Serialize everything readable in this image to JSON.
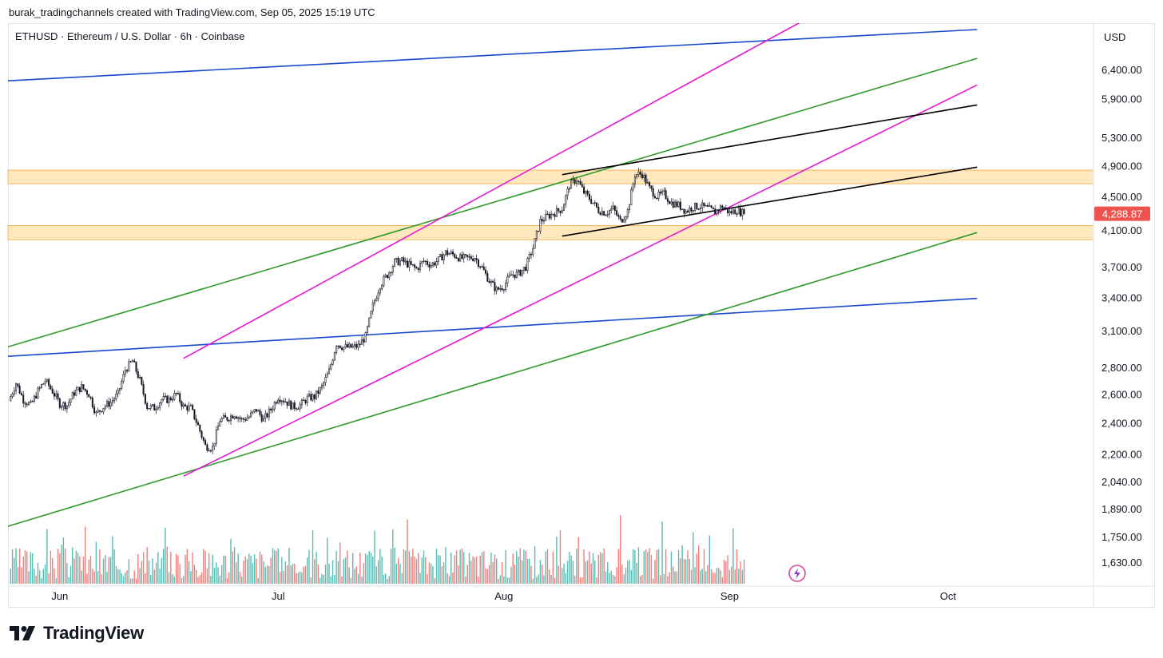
{
  "header": {
    "attribution": "burak_tradingchannels created with TradingView.com, Sep 05, 2025 15:19 UTC"
  },
  "chart_title": "ETHUSD · Ethereum / U.S. Dollar · 6h · Coinbase",
  "currency_label": "USD",
  "current_price_label": "4,288.87",
  "logo_text": "TradingView",
  "colors": {
    "up": "#26a69a",
    "down": "#ef5350",
    "current_price": "#ef5350",
    "zone": "#ffe0a8",
    "zone_border": "#f2a93b",
    "blue_line": "#1848cc",
    "green_line": "#2d9a27",
    "magenta_line": "#e617d4",
    "black_line": "#000000"
  },
  "chart_data": {
    "type": "candlestick",
    "symbol": "ETHUSD",
    "interval": "6h",
    "exchange": "Coinbase",
    "x_ticks": [
      "Jun",
      "Jul",
      "Aug",
      "Sep",
      "Oct"
    ],
    "y_ticks": [
      "6,400.00",
      "5,900.00",
      "5,300.00",
      "4,900.00",
      "4,500.00",
      "4,100.00",
      "3,700.00",
      "3,400.00",
      "3,100.00",
      "2,800.00",
      "2,600.00",
      "2,400.00",
      "2,200.00",
      "2,040.00",
      "1,890.00",
      "1,750.00",
      "1,630.00"
    ],
    "y_tick_values": [
      6400,
      5900,
      5300,
      4900,
      4500,
      4100,
      3700,
      3400,
      3100,
      2800,
      2600,
      2400,
      2200,
      2040,
      1890,
      1750,
      1630
    ],
    "y_scale": "log",
    "start_date": "2025-05-25",
    "candles_per_day": 4,
    "close_path": [
      {
        "day": 0,
        "price": 2550
      },
      {
        "day": 1,
        "price": 2680
      },
      {
        "day": 2,
        "price": 2560
      },
      {
        "day": 3,
        "price": 2520
      },
      {
        "day": 4,
        "price": 2620
      },
      {
        "day": 5,
        "price": 2700
      },
      {
        "day": 6,
        "price": 2620
      },
      {
        "day": 7,
        "price": 2530
      },
      {
        "day": 8,
        "price": 2520
      },
      {
        "day": 9,
        "price": 2610
      },
      {
        "day": 10,
        "price": 2650
      },
      {
        "day": 11,
        "price": 2600
      },
      {
        "day": 12,
        "price": 2460
      },
      {
        "day": 13,
        "price": 2510
      },
      {
        "day": 14,
        "price": 2540
      },
      {
        "day": 15,
        "price": 2600
      },
      {
        "day": 16,
        "price": 2780
      },
      {
        "day": 17,
        "price": 2850
      },
      {
        "day": 18,
        "price": 2700
      },
      {
        "day": 19,
        "price": 2510
      },
      {
        "day": 20,
        "price": 2500
      },
      {
        "day": 21,
        "price": 2560
      },
      {
        "day": 22,
        "price": 2560
      },
      {
        "day": 23,
        "price": 2600
      },
      {
        "day": 24,
        "price": 2510
      },
      {
        "day": 25,
        "price": 2500
      },
      {
        "day": 26,
        "price": 2380
      },
      {
        "day": 27,
        "price": 2250
      },
      {
        "day": 28,
        "price": 2240
      },
      {
        "day": 29,
        "price": 2420
      },
      {
        "day": 30,
        "price": 2430
      },
      {
        "day": 31,
        "price": 2460
      },
      {
        "day": 32,
        "price": 2420
      },
      {
        "day": 33,
        "price": 2440
      },
      {
        "day": 34,
        "price": 2490
      },
      {
        "day": 35,
        "price": 2420
      },
      {
        "day": 36,
        "price": 2490
      },
      {
        "day": 37,
        "price": 2580
      },
      {
        "day": 38,
        "price": 2550
      },
      {
        "day": 39,
        "price": 2510
      },
      {
        "day": 40,
        "price": 2520
      },
      {
        "day": 41,
        "price": 2570
      },
      {
        "day": 42,
        "price": 2580
      },
      {
        "day": 43,
        "price": 2650
      },
      {
        "day": 44,
        "price": 2770
      },
      {
        "day": 45,
        "price": 2990
      },
      {
        "day": 46,
        "price": 2960
      },
      {
        "day": 47,
        "price": 2960
      },
      {
        "day": 48,
        "price": 2970
      },
      {
        "day": 49,
        "price": 3050
      },
      {
        "day": 50,
        "price": 3320
      },
      {
        "day": 51,
        "price": 3520
      },
      {
        "day": 52,
        "price": 3620
      },
      {
        "day": 53,
        "price": 3750
      },
      {
        "day": 54,
        "price": 3760
      },
      {
        "day": 55,
        "price": 3720
      },
      {
        "day": 56,
        "price": 3680
      },
      {
        "day": 57,
        "price": 3760
      },
      {
        "day": 58,
        "price": 3720
      },
      {
        "day": 59,
        "price": 3770
      },
      {
        "day": 60,
        "price": 3850
      },
      {
        "day": 61,
        "price": 3830
      },
      {
        "day": 62,
        "price": 3790
      },
      {
        "day": 63,
        "price": 3790
      },
      {
        "day": 64,
        "price": 3800
      },
      {
        "day": 65,
        "price": 3690
      },
      {
        "day": 66,
        "price": 3560
      },
      {
        "day": 67,
        "price": 3470
      },
      {
        "day": 68,
        "price": 3510
      },
      {
        "day": 69,
        "price": 3620
      },
      {
        "day": 70,
        "price": 3630
      },
      {
        "day": 71,
        "price": 3700
      },
      {
        "day": 72,
        "price": 3900
      },
      {
        "day": 73,
        "price": 4200
      },
      {
        "day": 74,
        "price": 4260
      },
      {
        "day": 75,
        "price": 4300
      },
      {
        "day": 76,
        "price": 4350
      },
      {
        "day": 77,
        "price": 4640
      },
      {
        "day": 78,
        "price": 4720
      },
      {
        "day": 79,
        "price": 4550
      },
      {
        "day": 80,
        "price": 4450
      },
      {
        "day": 81,
        "price": 4330
      },
      {
        "day": 82,
        "price": 4300
      },
      {
        "day": 83,
        "price": 4350
      },
      {
        "day": 84,
        "price": 4200
      },
      {
        "day": 85,
        "price": 4320
      },
      {
        "day": 86,
        "price": 4780
      },
      {
        "day": 87,
        "price": 4790
      },
      {
        "day": 88,
        "price": 4600
      },
      {
        "day": 89,
        "price": 4500
      },
      {
        "day": 90,
        "price": 4530
      },
      {
        "day": 91,
        "price": 4420
      },
      {
        "day": 92,
        "price": 4390
      },
      {
        "day": 93,
        "price": 4320
      },
      {
        "day": 94,
        "price": 4370
      },
      {
        "day": 95,
        "price": 4380
      },
      {
        "day": 96,
        "price": 4350
      },
      {
        "day": 97,
        "price": 4310
      },
      {
        "day": 98,
        "price": 4380
      },
      {
        "day": 99,
        "price": 4300
      },
      {
        "day": 100,
        "price": 4330
      },
      {
        "day": 101,
        "price": 4288.87
      }
    ],
    "current_price": 4288.87,
    "zones": [
      {
        "low": 4660,
        "high": 4840
      },
      {
        "low": 3990,
        "high": 4150
      }
    ],
    "trendlines": [
      {
        "color": "blue",
        "from": {
          "day": -2,
          "price": 6190
        },
        "to": {
          "day": 133,
          "price": 7150
        }
      },
      {
        "color": "blue",
        "from": {
          "day": -2,
          "price": 2880
        },
        "to": {
          "day": 133,
          "price": 3390
        }
      },
      {
        "color": "green",
        "from": {
          "day": -2,
          "price": 2930
        },
        "to": {
          "day": 133,
          "price": 6600
        }
      },
      {
        "color": "green",
        "from": {
          "day": -2,
          "price": 1780
        },
        "to": {
          "day": 133,
          "price": 4070
        }
      },
      {
        "color": "magenta",
        "from": {
          "day": 24,
          "price": 2870
        },
        "to": {
          "day": 110,
          "price": 7400
        }
      },
      {
        "color": "magenta",
        "from": {
          "day": 24,
          "price": 2070
        },
        "to": {
          "day": 133,
          "price": 6130
        }
      },
      {
        "color": "black",
        "from": {
          "day": 76,
          "price": 4780
        },
        "to": {
          "day": 133,
          "price": 5800
        }
      },
      {
        "color": "black",
        "from": {
          "day": 76,
          "price": 4030
        },
        "to": {
          "day": 133,
          "price": 4880
        }
      }
    ]
  }
}
